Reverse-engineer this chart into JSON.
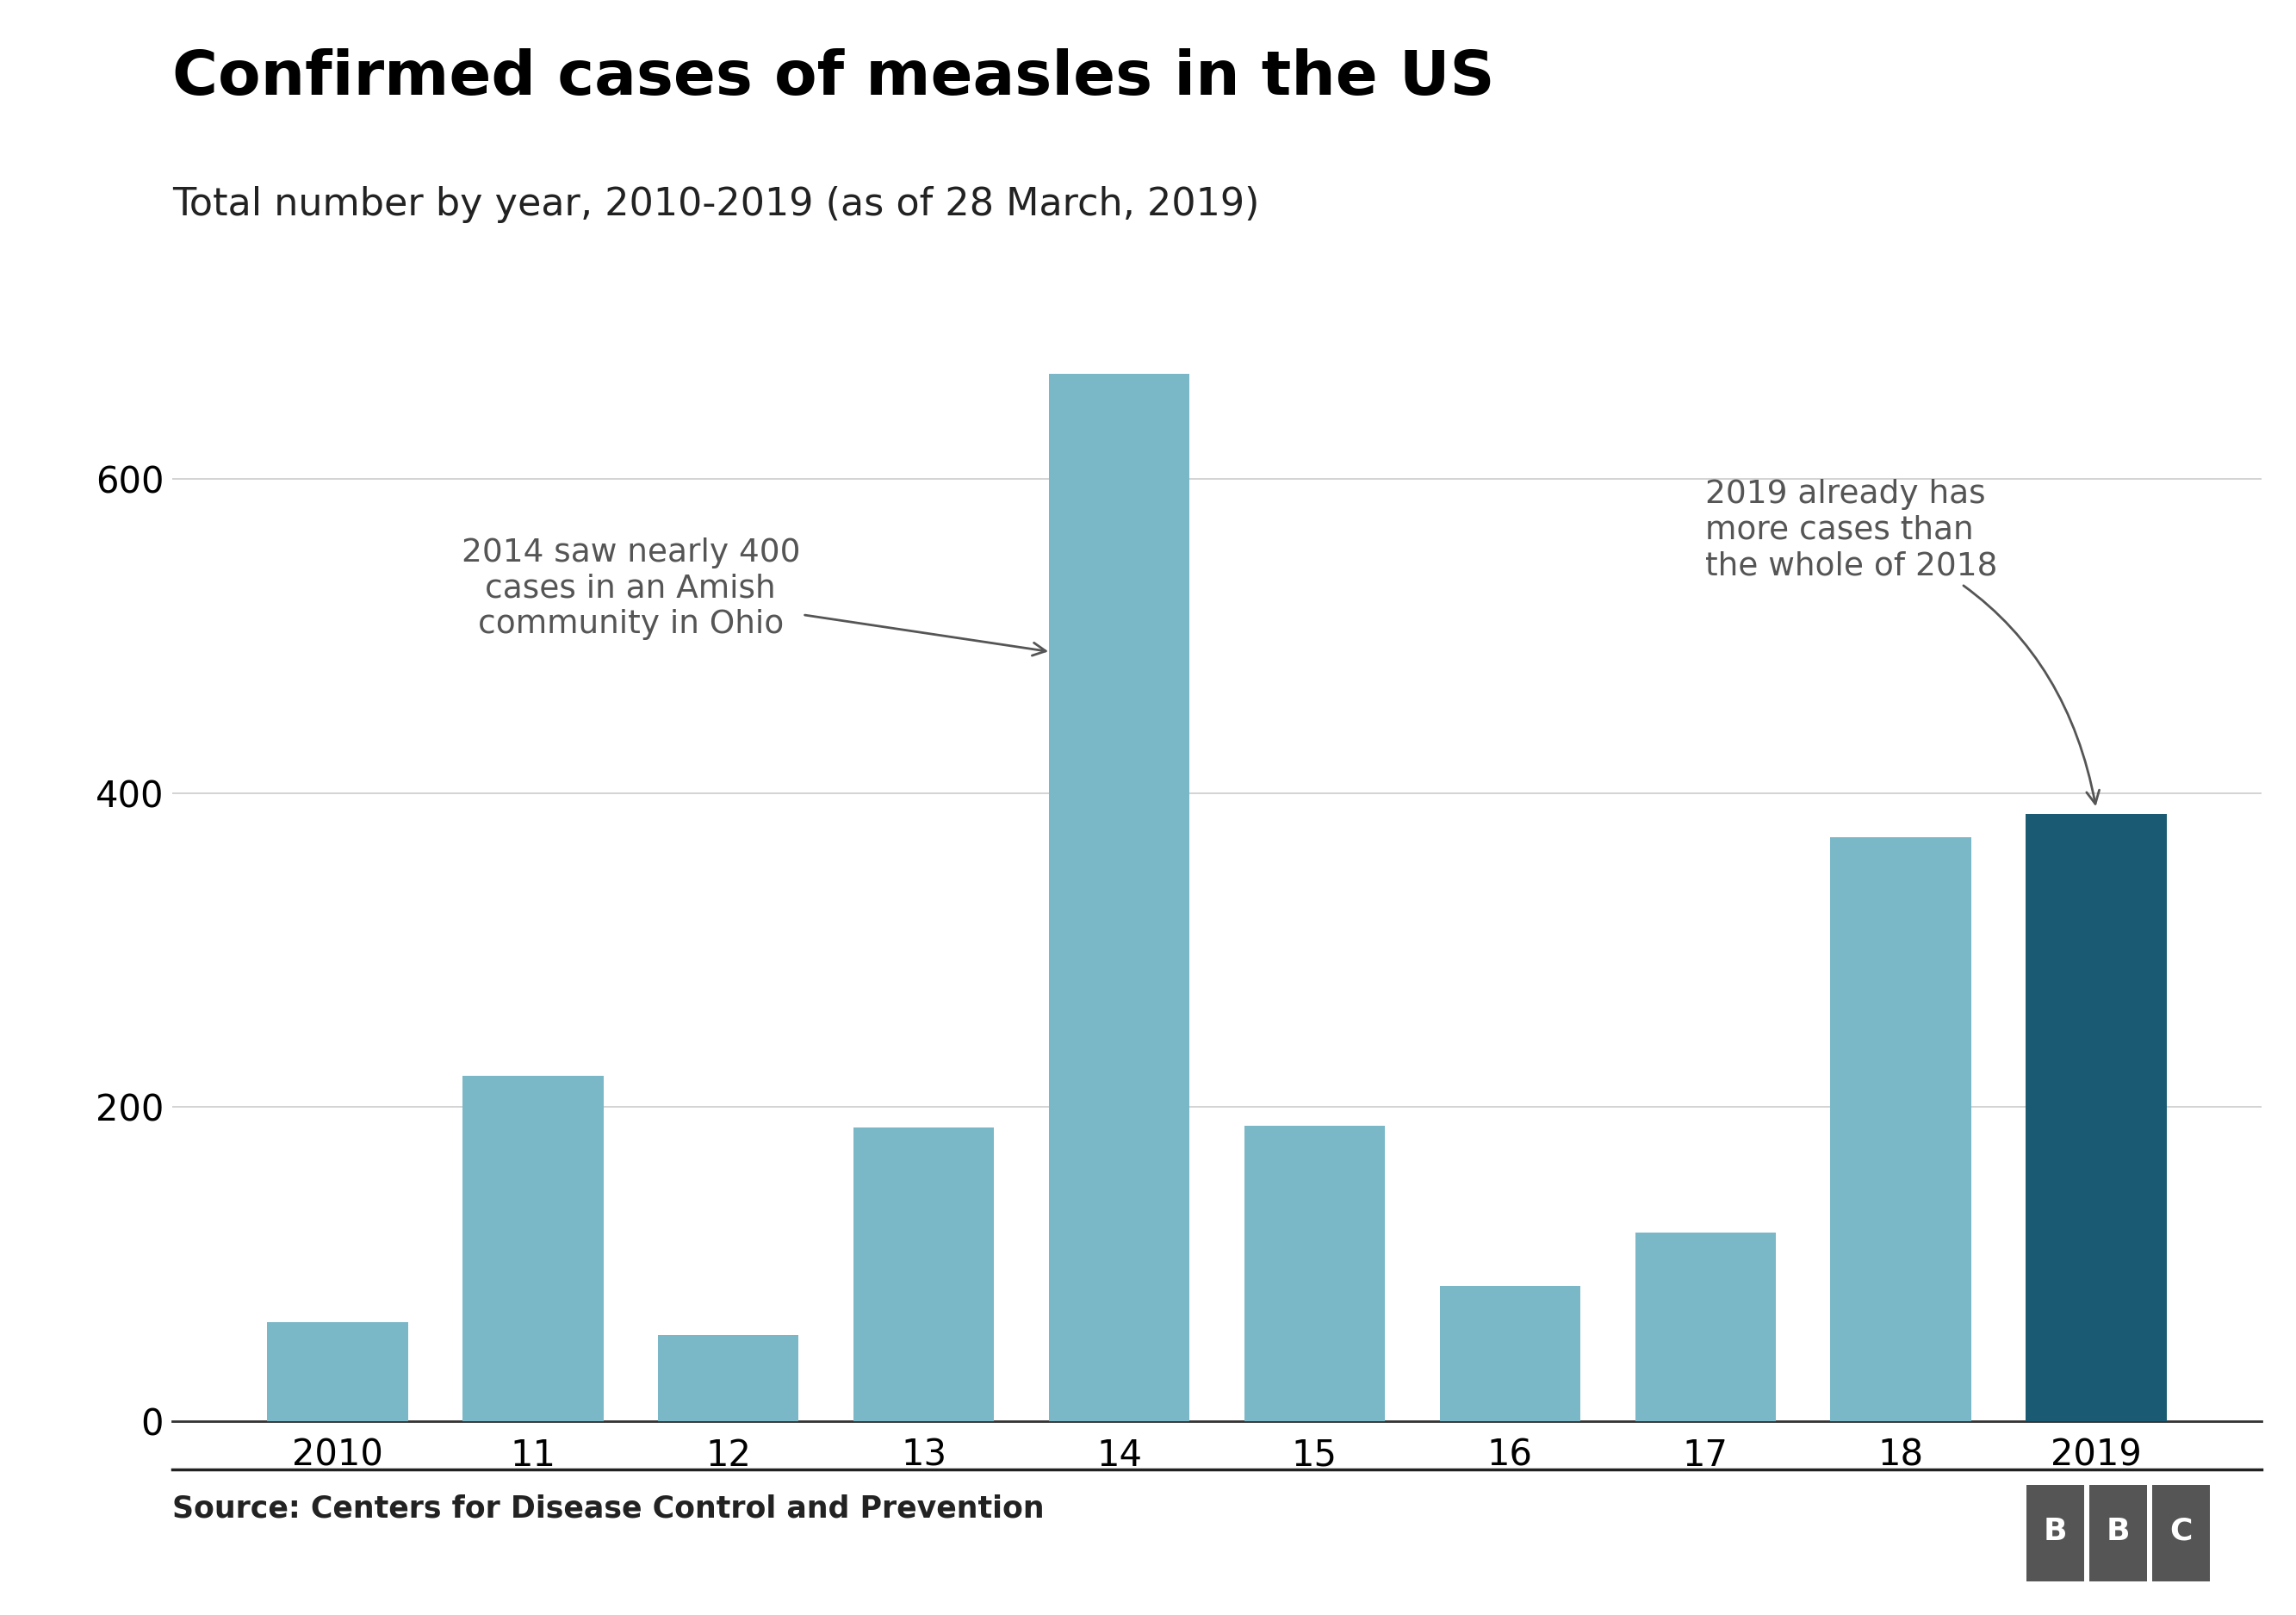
{
  "title": "Confirmed cases of measles in the US",
  "subtitle": "Total number by year, 2010-2019 (as of 28 March, 2019)",
  "categories": [
    "2010",
    "11",
    "12",
    "13",
    "14",
    "15",
    "16",
    "17",
    "18",
    "2019"
  ],
  "values": [
    63,
    220,
    55,
    187,
    667,
    188,
    86,
    120,
    372,
    387
  ],
  "bar_colors": [
    "#7ab8c8",
    "#7ab8c8",
    "#7ab8c8",
    "#7ab8c8",
    "#7ab8c8",
    "#7ab8c8",
    "#7ab8c8",
    "#7ab8c8",
    "#7ab8c8",
    "#1a5a72"
  ],
  "ylim": [
    0,
    720
  ],
  "yticks": [
    0,
    200,
    400,
    600
  ],
  "source_text": "Source: Centers for Disease Control and Prevention",
  "annotation1_text": "2014 saw nearly 400\ncases in an Amish\ncommunity in Ohio",
  "annotation2_text": "2019 already has\nmore cases than\nthe whole of 2018",
  "background_color": "#ffffff",
  "title_fontsize": 52,
  "subtitle_fontsize": 32,
  "tick_fontsize": 30,
  "annotation_fontsize": 27,
  "source_fontsize": 25,
  "grid_color": "#cccccc",
  "spine_color": "#333333",
  "annotation_color": "#555555",
  "bbc_box_color": "#555555"
}
